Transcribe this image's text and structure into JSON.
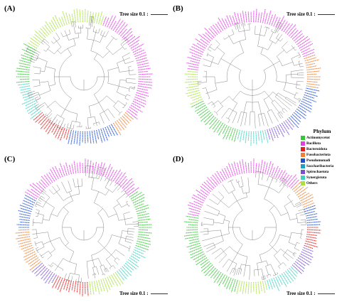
{
  "panels": [
    {
      "letter": "(A)",
      "scale_label": "Tree size 0.1 :",
      "scale_pos": "top",
      "sectors": [
        [
          "Others",
          0,
          20
        ],
        [
          "Bacillota",
          20,
          130
        ],
        [
          "Fusobacteriota",
          130,
          150
        ],
        [
          "Pseudomonadota",
          150,
          195
        ],
        [
          "Bacteroidota",
          195,
          230
        ],
        [
          "Synergistota",
          230,
          265
        ],
        [
          "Actinomycetota",
          265,
          300
        ],
        [
          "Others",
          300,
          360
        ]
      ]
    },
    {
      "letter": "(B)",
      "scale_label": "Tree size 0.1 :",
      "scale_pos": "top",
      "sectors": [
        [
          "Bacillota",
          0,
          70
        ],
        [
          "Fusobacteriota",
          70,
          100
        ],
        [
          "Pseudomonadota",
          100,
          140
        ],
        [
          "Spirochaetota",
          140,
          165
        ],
        [
          "Synergistota",
          165,
          195
        ],
        [
          "Actinomycetota",
          195,
          245
        ],
        [
          "Others",
          245,
          275
        ],
        [
          "Bacillota",
          275,
          360
        ]
      ]
    },
    {
      "letter": "(C)",
      "scale_label": "Tree size 0.1 :",
      "scale_pos": "bottom",
      "sectors": [
        [
          "Bacillota",
          0,
          55
        ],
        [
          "Actinomycetota",
          55,
          110
        ],
        [
          "Synergistota",
          110,
          145
        ],
        [
          "Others",
          145,
          175
        ],
        [
          "Bacteroidota",
          175,
          210
        ],
        [
          "Spirochaetota",
          210,
          230
        ],
        [
          "Fusobacteriota",
          230,
          270
        ],
        [
          "Pseudomonadota",
          270,
          300
        ],
        [
          "Bacillota",
          300,
          360
        ]
      ]
    },
    {
      "letter": "(D)",
      "scale_label": "Tree size 0.1 :",
      "scale_pos": "bottom",
      "sectors": [
        [
          "Bacillota",
          0,
          45
        ],
        [
          "Fusobacteriota",
          45,
          70
        ],
        [
          "Pseudomonadota",
          70,
          90
        ],
        [
          "Bacteroidota",
          90,
          110
        ],
        [
          "Spirochaetota",
          110,
          135
        ],
        [
          "Synergistota",
          135,
          165
        ],
        [
          "Others",
          165,
          195
        ],
        [
          "Actinomycetota",
          195,
          280
        ],
        [
          "Bacillota",
          280,
          360
        ]
      ]
    }
  ],
  "legend": {
    "title": "Phylum",
    "items": [
      {
        "name": "Actinomycetot",
        "phylum": "Actinomycetota",
        "color": "#34c734"
      },
      {
        "name": "Bacillota",
        "phylum": "Bacillota",
        "color": "#e040e0"
      },
      {
        "name": "Bacteroidota",
        "phylum": "Bacteroidota",
        "color": "#e02020"
      },
      {
        "name": "Fusobacteriota",
        "phylum": "Fusobacteriota",
        "color": "#f08030"
      },
      {
        "name": "Pseudomonadi",
        "phylum": "Pseudomonadota",
        "color": "#2050d0"
      },
      {
        "name": "Saccharibacteria",
        "phylum": "Saccharibacteria",
        "color": "#20a0c0"
      },
      {
        "name": "Spirochaetota",
        "phylum": "Spirochaetota",
        "color": "#7a50d0"
      },
      {
        "name": "Synergistota",
        "phylum": "Synergistota",
        "color": "#40d0c0"
      },
      {
        "name": "Others",
        "phylum": "Others",
        "color": "#a8e040"
      }
    ]
  }
}
